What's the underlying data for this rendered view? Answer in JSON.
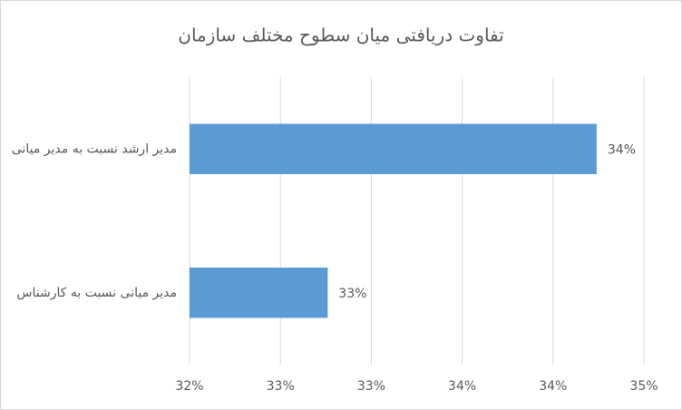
{
  "chart_data": {
    "type": "barh",
    "title": "تفاوت دریافتی میان سطوح مختلف سازمان",
    "categories": [
      "مدیر ارشد نسبت به مدیر میانی",
      "مدیر میانی نسبت به کارشناس"
    ],
    "values": [
      34.24,
      32.76
    ],
    "value_labels": [
      "34%",
      "33%"
    ],
    "color": "#5b9bd5",
    "xlim": [
      32,
      34.5
    ],
    "xticks": [
      {
        "value": 32,
        "label": "32%"
      },
      {
        "value": 32.5,
        "label": "33%"
      },
      {
        "value": 33,
        "label": "33%"
      },
      {
        "value": 33.5,
        "label": "34%"
      },
      {
        "value": 34,
        "label": "34%"
      },
      {
        "value": 34.5,
        "label": "35%"
      }
    ],
    "grid": true
  }
}
